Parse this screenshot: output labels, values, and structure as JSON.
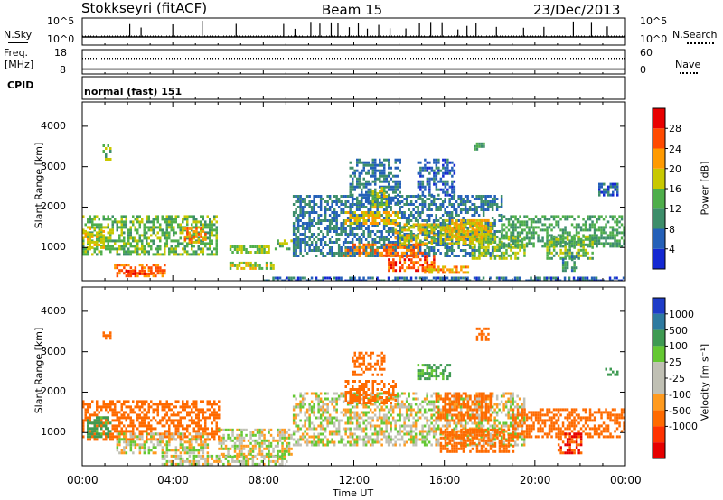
{
  "header": {
    "station": "Stokkseyri (fitACF)",
    "beam": "Beam 15",
    "date": "23/Dec/2013"
  },
  "noise_panel": {
    "left_label": "N.Sky",
    "right_label": "N.Search",
    "left_ticks": [
      "10^5",
      "10^0"
    ],
    "right_ticks": [
      "10^5",
      "10^0"
    ]
  },
  "freq_panel": {
    "left_label_line1": "Freq.",
    "left_label_line2": "[MHz]",
    "right_label": "Nave",
    "left_ticks": [
      "18",
      "8"
    ],
    "right_ticks": [
      "60",
      "0"
    ]
  },
  "cpid_panel": {
    "label": "CPID",
    "program": "normal (fast) 151"
  },
  "x_axis": {
    "label": "Time UT",
    "ticks": [
      "00:00",
      "04:00",
      "08:00",
      "12:00",
      "16:00",
      "20:00",
      "00:00"
    ]
  },
  "colors": {
    "power_scale": [
      "#1428d2",
      "#2460b8",
      "#3d8e6a",
      "#4eae4a",
      "#c8c800",
      "#ff9a00",
      "#ff4a00",
      "#e80000"
    ],
    "velocity_scale": [
      "#1e3cc8",
      "#2e7aa0",
      "#3e9a52",
      "#64c832",
      "#c0c0b4",
      "#c0c0b4",
      "#ff9a1e",
      "#ff6a00",
      "#ff3200",
      "#e60000"
    ],
    "ground_scatter": "#c0c0b4"
  },
  "chart_data": [
    {
      "type": "line",
      "name": "noise",
      "x_unit": "hours UT",
      "xlim": [
        0,
        24
      ],
      "ylim_log10": [
        0,
        5
      ],
      "baseline_log10": 1.5,
      "spikes_x": [
        2.1,
        2.6,
        4.0,
        5.3,
        6.8,
        8.9,
        9.4,
        10.1,
        10.5,
        11.0,
        11.3,
        11.8,
        12.2,
        12.6,
        13.1,
        13.6,
        14.3,
        14.9,
        15.4,
        15.9,
        16.6,
        17.0,
        17.4,
        18.3,
        19.5,
        20.4,
        21.7,
        22.5,
        23.2
      ]
    },
    {
      "type": "scatter",
      "name": "frequency-nave",
      "xlim": [
        0,
        24
      ],
      "ylim": [
        8,
        18
      ],
      "frequency_mhz": 10.0,
      "nave_ylim": [
        0,
        60
      ],
      "nave_level": 25
    },
    {
      "type": "heatmap",
      "name": "power",
      "title": "Power [dB]",
      "ylabel": "Slant Range [km]",
      "xlabel": "Time UT",
      "xlim": [
        0,
        24
      ],
      "ylim": [
        180,
        4600
      ],
      "y_ticks": [
        1000,
        2000,
        3000,
        4000
      ],
      "colorbar_ticks": [
        "4",
        "8",
        "12",
        "16",
        "20",
        "24",
        "28"
      ],
      "colorbar_range": [
        0,
        32
      ],
      "patches": [
        {
          "t0": 0.0,
          "t1": 5.9,
          "r0": 800,
          "r1": 1800,
          "v": 14
        },
        {
          "t0": 0.1,
          "t1": 0.9,
          "r0": 1000,
          "r1": 1500,
          "v": 20
        },
        {
          "t0": 4.4,
          "t1": 5.4,
          "r0": 1100,
          "r1": 1500,
          "v": 22
        },
        {
          "t0": 1.4,
          "t1": 3.6,
          "r0": 300,
          "r1": 600,
          "v": 24
        },
        {
          "t0": 1.8,
          "t1": 3.0,
          "r0": 320,
          "r1": 450,
          "v": 28
        },
        {
          "t0": 0.9,
          "t1": 1.2,
          "r0": 3200,
          "r1": 3550,
          "v": 14
        },
        {
          "t0": 6.5,
          "t1": 8.4,
          "r0": 450,
          "r1": 650,
          "v": 18
        },
        {
          "t0": 6.5,
          "t1": 8.2,
          "r0": 850,
          "r1": 1050,
          "v": 16
        },
        {
          "t0": 8.5,
          "t1": 9.2,
          "r0": 950,
          "r1": 1200,
          "v": 14
        },
        {
          "t0": 8.0,
          "t1": 23.9,
          "r0": 150,
          "r1": 280,
          "v": 6
        },
        {
          "t0": 9.3,
          "t1": 18.5,
          "r0": 800,
          "r1": 2300,
          "v": 8
        },
        {
          "t0": 11.6,
          "t1": 14.0,
          "r0": 1600,
          "r1": 1900,
          "v": 20
        },
        {
          "t0": 13.8,
          "t1": 18.0,
          "r0": 1100,
          "r1": 1600,
          "v": 18
        },
        {
          "t0": 11.5,
          "t1": 15.0,
          "r0": 800,
          "r1": 1100,
          "v": 24
        },
        {
          "t0": 13.5,
          "t1": 15.5,
          "r0": 400,
          "r1": 800,
          "v": 26
        },
        {
          "t0": 15.0,
          "t1": 17.0,
          "r0": 350,
          "r1": 550,
          "v": 22
        },
        {
          "t0": 16.0,
          "t1": 18.0,
          "r0": 1200,
          "r1": 1700,
          "v": 20
        },
        {
          "t0": 17.2,
          "t1": 19.5,
          "r0": 700,
          "r1": 1300,
          "v": 16
        },
        {
          "t0": 18.5,
          "t1": 24.0,
          "r0": 1000,
          "r1": 1800,
          "v": 12
        },
        {
          "t0": 20.5,
          "t1": 22.5,
          "r0": 700,
          "r1": 1300,
          "v": 14
        },
        {
          "t0": 21.2,
          "t1": 21.8,
          "r0": 400,
          "r1": 800,
          "v": 10
        },
        {
          "t0": 11.8,
          "t1": 14.0,
          "r0": 2100,
          "r1": 3200,
          "v": 8
        },
        {
          "t0": 12.8,
          "t1": 13.4,
          "r0": 2000,
          "r1": 2500,
          "v": 18
        },
        {
          "t0": 14.8,
          "t1": 16.4,
          "r0": 2300,
          "r1": 3200,
          "v": 6
        },
        {
          "t0": 17.3,
          "t1": 17.7,
          "r0": 3400,
          "r1": 3600,
          "v": 12
        },
        {
          "t0": 22.8,
          "t1": 23.6,
          "r0": 2300,
          "r1": 2600,
          "v": 6
        }
      ]
    },
    {
      "type": "heatmap",
      "name": "velocity",
      "title": "Velocity [m s⁻¹]",
      "ylabel": "Slant Range [km]",
      "xlabel": "Time UT",
      "xlim": [
        0,
        24
      ],
      "ylim": [
        180,
        4600
      ],
      "y_ticks": [
        1000,
        2000,
        3000,
        4000
      ],
      "colorbar_ticks": [
        "1000",
        "500",
        "100",
        "25",
        "-25",
        "-100",
        "-500",
        "-1000"
      ],
      "patches": [
        {
          "t0": 0.0,
          "t1": 6.0,
          "r0": 800,
          "r1": 1800,
          "v": -300
        },
        {
          "t0": 0.2,
          "t1": 1.2,
          "r0": 900,
          "r1": 1400,
          "v": 150
        },
        {
          "t0": 1.5,
          "t1": 5.5,
          "r0": 500,
          "r1": 1000,
          "v": 0
        },
        {
          "t0": 3.5,
          "t1": 9.0,
          "r0": 200,
          "r1": 450,
          "v": 0
        },
        {
          "t0": 6.0,
          "t1": 9.2,
          "r0": 400,
          "r1": 1100,
          "v": 0
        },
        {
          "t0": 9.3,
          "t1": 19.5,
          "r0": 700,
          "r1": 2000,
          "v": 0
        },
        {
          "t0": 11.6,
          "t1": 13.8,
          "r0": 1700,
          "r1": 2300,
          "v": -400
        },
        {
          "t0": 11.9,
          "t1": 13.3,
          "r0": 2400,
          "r1": 3000,
          "v": -300
        },
        {
          "t0": 15.6,
          "t1": 18.0,
          "r0": 1300,
          "r1": 2000,
          "v": -200
        },
        {
          "t0": 15.8,
          "t1": 19.0,
          "r0": 500,
          "r1": 1100,
          "v": -350
        },
        {
          "t0": 19.0,
          "t1": 24.0,
          "r0": 900,
          "r1": 1600,
          "v": -300
        },
        {
          "t0": 21.0,
          "t1": 22.0,
          "r0": 500,
          "r1": 1000,
          "v": -500
        },
        {
          "t0": 17.4,
          "t1": 17.9,
          "r0": 3300,
          "r1": 3600,
          "v": -200
        },
        {
          "t0": 0.9,
          "t1": 1.2,
          "r0": 3300,
          "r1": 3500,
          "v": -300
        },
        {
          "t0": 23.0,
          "t1": 23.6,
          "r0": 2400,
          "r1": 2600,
          "v": 150
        },
        {
          "t0": 14.8,
          "t1": 16.2,
          "r0": 2300,
          "r1": 2700,
          "v": 120
        }
      ]
    }
  ]
}
